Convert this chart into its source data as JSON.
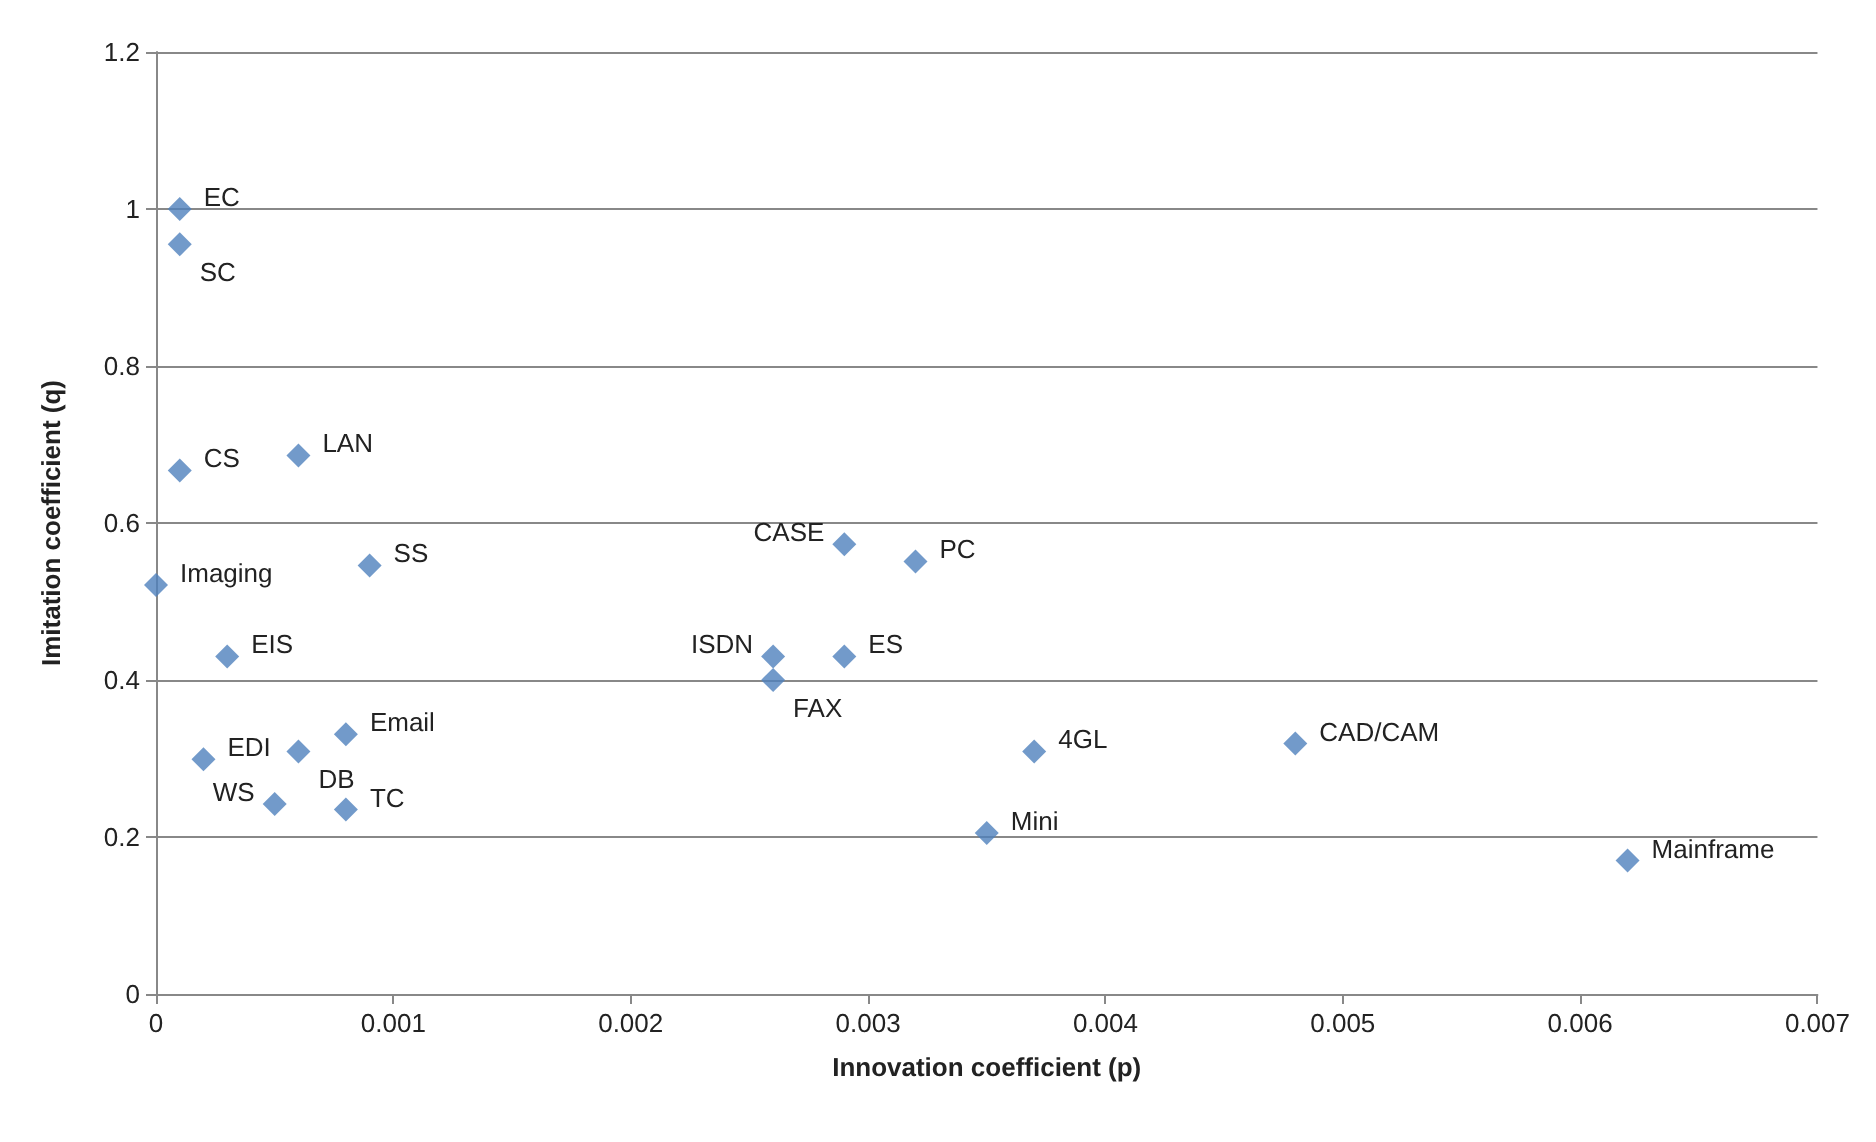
{
  "chart_data": {
    "type": "scatter",
    "xlabel": "Innovation coefficient (p)",
    "ylabel": "Imitation coefficient (q)",
    "x": [
      0.0001,
      0.0001,
      0.0001,
      0.0006,
      0,
      0.0009,
      0.0003,
      0.0002,
      0.0006,
      0.0008,
      0.0005,
      0.0008,
      0.0029,
      0.0032,
      0.0026,
      0.0029,
      0.0026,
      0.0037,
      0.0035,
      0.0048,
      0.0062
    ],
    "values": [
      1.0,
      0.955,
      0.667,
      0.686,
      0.521,
      0.546,
      0.43,
      0.299,
      0.309,
      0.331,
      0.242,
      0.235,
      0.573,
      0.551,
      0.43,
      0.43,
      0.4,
      0.309,
      0.205,
      0.319,
      0.17
    ],
    "color": "#4f81bd",
    "marker": "diamond",
    "grid": "y",
    "xlim": [
      0,
      0.007
    ],
    "xticks": [
      0,
      0.001,
      0.002,
      0.003,
      0.004,
      0.005,
      0.006,
      0.007
    ],
    "ylim": [
      0,
      1.2
    ],
    "yticks": [
      0,
      0.2,
      0.4,
      0.6,
      0.8,
      1,
      1.2
    ],
    "annotations": [
      {
        "text": "EC",
        "x": 0.0001,
        "y": 1.0
      },
      {
        "text": "SC",
        "x": 0.0001,
        "y": 0.955
      },
      {
        "text": "CS",
        "x": 0.0001,
        "y": 0.667
      },
      {
        "text": "LAN",
        "x": 0.0006,
        "y": 0.686
      },
      {
        "text": "Imaging",
        "x": 0,
        "y": 0.521
      },
      {
        "text": "SS",
        "x": 0.0009,
        "y": 0.546
      },
      {
        "text": "EIS",
        "x": 0.0003,
        "y": 0.43
      },
      {
        "text": "EDI",
        "x": 0.0002,
        "y": 0.299
      },
      {
        "text": "DB",
        "x": 0.0006,
        "y": 0.309
      },
      {
        "text": "Email",
        "x": 0.0008,
        "y": 0.331
      },
      {
        "text": "WS",
        "x": 0.0005,
        "y": 0.242
      },
      {
        "text": "TC",
        "x": 0.0008,
        "y": 0.235
      },
      {
        "text": "CASE",
        "x": 0.0029,
        "y": 0.573
      },
      {
        "text": "PC",
        "x": 0.0032,
        "y": 0.551
      },
      {
        "text": "ISDN",
        "x": 0.0026,
        "y": 0.43
      },
      {
        "text": "ES",
        "x": 0.0029,
        "y": 0.43
      },
      {
        "text": "FAX",
        "x": 0.0026,
        "y": 0.4
      },
      {
        "text": "4GL",
        "x": 0.0037,
        "y": 0.309
      },
      {
        "text": "Mini",
        "x": 0.0035,
        "y": 0.205
      },
      {
        "text": "CAD/CAM",
        "x": 0.0048,
        "y": 0.319
      },
      {
        "text": "Mainframe",
        "x": 0.0062,
        "y": 0.17
      }
    ]
  }
}
